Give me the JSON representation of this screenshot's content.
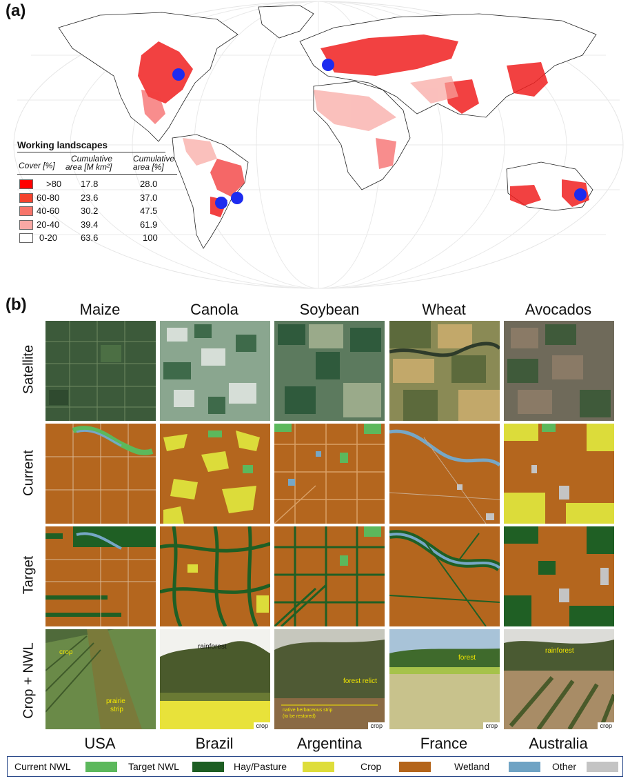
{
  "panel_a_label": "(a)",
  "panel_b_label": "(b)",
  "legend": {
    "title": "Working landscapes",
    "header_cover": "Cover [%]",
    "header_cum_area_line1": "Cumulative",
    "header_cum_area_line2": "area [M km²]",
    "header_cum_pct_line1": "Cumulative",
    "header_cum_pct_line2": "area [%]",
    "rows": [
      {
        "cover": ">80",
        "area": "17.8",
        "pct": "28.0",
        "color": "#ff0000"
      },
      {
        "cover": "60-80",
        "area": "23.6",
        "pct": "37.0",
        "color": "#f4432e"
      },
      {
        "cover": "40-60",
        "area": "30.2",
        "pct": "47.5",
        "color": "#f7746a"
      },
      {
        "cover": "20-40",
        "area": "39.4",
        "pct": "61.9",
        "color": "#f9a8a4"
      },
      {
        "cover": "0-20",
        "area": "63.6",
        "pct": "100",
        "color": "#ffffff"
      }
    ]
  },
  "columns": [
    "Maize",
    "Canola",
    "Soybean",
    "Wheat",
    "Avocados"
  ],
  "rows": [
    "Satellite",
    "Current",
    "Target",
    "Crop + NWL"
  ],
  "countries": [
    "USA",
    "Brazil",
    "Argentina",
    "France",
    "Australia"
  ],
  "photo_labels": {
    "usa_crop": "crop",
    "usa_strip_line1": "prairie",
    "usa_strip_line2": "strip",
    "brazil_top": "rainforest",
    "brazil_crop": "crop",
    "argentina_relict": "forest relict",
    "argentina_strip_line1": "native herbaceous strip",
    "argentina_strip_line2": "(to be restored)",
    "argentina_crop": "crop",
    "france_forest": "forest",
    "france_crop": "crop",
    "australia_top": "rainforest",
    "australia_crop": "crop"
  },
  "land_legend": [
    {
      "label": "Current NWL",
      "color": "#5cb85c"
    },
    {
      "label": "Target NWL",
      "color": "#1d5e23"
    },
    {
      "label": "Hay/Pasture",
      "color": "#dedd3a"
    },
    {
      "label": "Crop",
      "color": "#b4651b"
    },
    {
      "label": "Wetland",
      "color": "#6fa3c4"
    },
    {
      "label": "Other",
      "color": "#c4c4c4"
    }
  ],
  "colors": {
    "crop": "#b4661e",
    "current_nwl": "#5cb85c",
    "target_nwl": "#1f5f24",
    "hay": "#dcdc3a",
    "wetland": "#76a7c6",
    "other": "#c4c4c4",
    "marker": "#1d2bef",
    "landscape_red": "#f02020",
    "legend_border": "#2b4a8a"
  }
}
